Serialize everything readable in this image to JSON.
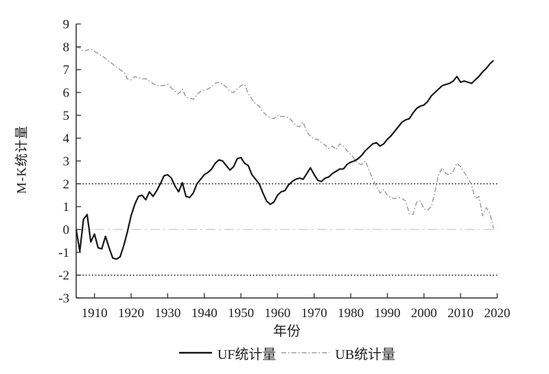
{
  "chart_data": {
    "type": "line",
    "title": "",
    "xlabel": "年份",
    "ylabel": "M-K统计量",
    "xlim": [
      1905,
      2020
    ],
    "ylim": [
      -3,
      9
    ],
    "grid": false,
    "legend_position": "bottom-center",
    "x_ticks": [
      1910,
      1920,
      1930,
      1940,
      1950,
      1960,
      1970,
      1980,
      1990,
      2000,
      2010,
      2020
    ],
    "y_ticks": [
      -3,
      -2,
      -1,
      0,
      1,
      2,
      3,
      4,
      5,
      6,
      7,
      8,
      9
    ],
    "reference_lines": [
      {
        "name": "upper-critical-line",
        "y": 2,
        "color": "#2b2b2b",
        "width": 1.6,
        "dash": "1.8 2.8"
      },
      {
        "name": "zero-line",
        "y": 0,
        "color": "#c6c6c6",
        "width": 1.2,
        "dash": "14 5 3 5"
      },
      {
        "name": "lower-critical-line",
        "y": -2,
        "color": "#2b2b2b",
        "width": 1.6,
        "dash": "1.8 2.8"
      }
    ],
    "years": [
      1905,
      1906,
      1907,
      1908,
      1909,
      1910,
      1911,
      1912,
      1913,
      1914,
      1915,
      1916,
      1917,
      1918,
      1919,
      1920,
      1921,
      1922,
      1923,
      1924,
      1925,
      1926,
      1927,
      1928,
      1929,
      1930,
      1931,
      1932,
      1933,
      1934,
      1935,
      1936,
      1937,
      1938,
      1939,
      1940,
      1941,
      1942,
      1943,
      1944,
      1945,
      1946,
      1947,
      1948,
      1949,
      1950,
      1951,
      1952,
      1953,
      1954,
      1955,
      1956,
      1957,
      1958,
      1959,
      1960,
      1961,
      1962,
      1963,
      1964,
      1965,
      1966,
      1967,
      1968,
      1969,
      1970,
      1971,
      1972,
      1973,
      1974,
      1975,
      1976,
      1977,
      1978,
      1979,
      1980,
      1981,
      1982,
      1983,
      1984,
      1985,
      1986,
      1987,
      1988,
      1989,
      1990,
      1991,
      1992,
      1993,
      1994,
      1995,
      1996,
      1997,
      1998,
      1999,
      2000,
      2001,
      2002,
      2003,
      2004,
      2005,
      2006,
      2007,
      2008,
      2009,
      2010,
      2011,
      2012,
      2013,
      2014,
      2015,
      2016,
      2017,
      2018,
      2019
    ],
    "series": [
      {
        "key": "uf",
        "name": "UF统计量",
        "color": "#141414",
        "width": 2.2,
        "dash": "",
        "values": [
          0,
          -0.95,
          0.45,
          0.65,
          -0.55,
          -0.2,
          -0.8,
          -0.85,
          -0.3,
          -0.8,
          -1.25,
          -1.3,
          -1.2,
          -0.7,
          -0.1,
          0.6,
          1.1,
          1.45,
          1.5,
          1.3,
          1.65,
          1.45,
          1.7,
          2.0,
          2.35,
          2.4,
          2.25,
          1.9,
          1.65,
          2.05,
          1.45,
          1.4,
          1.6,
          2.0,
          2.2,
          2.4,
          2.5,
          2.65,
          2.9,
          3.05,
          3.0,
          2.8,
          2.6,
          2.75,
          3.1,
          3.15,
          2.9,
          2.8,
          2.4,
          2.2,
          2.0,
          1.6,
          1.25,
          1.1,
          1.2,
          1.5,
          1.65,
          1.7,
          1.95,
          2.1,
          2.2,
          2.25,
          2.2,
          2.45,
          2.7,
          2.4,
          2.15,
          2.1,
          2.25,
          2.3,
          2.45,
          2.55,
          2.65,
          2.65,
          2.85,
          2.95,
          3.0,
          3.1,
          3.25,
          3.45,
          3.6,
          3.75,
          3.8,
          3.65,
          3.75,
          3.95,
          4.1,
          4.3,
          4.5,
          4.7,
          4.8,
          4.85,
          5.1,
          5.3,
          5.4,
          5.45,
          5.6,
          5.85,
          6.0,
          6.15,
          6.3,
          6.35,
          6.4,
          6.5,
          6.7,
          6.45,
          6.5,
          6.45,
          6.4,
          6.55,
          6.7,
          6.9,
          7.05,
          7.25,
          7.4
        ]
      },
      {
        "key": "ub",
        "name": "UB统计量",
        "color": "#9a9a9a",
        "width": 1.5,
        "dash": "7 3 1.8 3",
        "values": [
          8.0,
          7.95,
          7.8,
          7.85,
          7.9,
          7.8,
          7.7,
          7.6,
          7.5,
          7.35,
          7.25,
          7.1,
          7.0,
          6.9,
          6.6,
          6.55,
          6.7,
          6.65,
          6.6,
          6.6,
          6.5,
          6.4,
          6.3,
          6.3,
          6.3,
          6.35,
          6.2,
          6.05,
          5.95,
          6.15,
          5.8,
          5.75,
          5.7,
          5.9,
          6.05,
          6.1,
          6.15,
          6.25,
          6.4,
          6.45,
          6.35,
          6.25,
          6.05,
          6.0,
          6.15,
          6.3,
          6.35,
          5.95,
          5.7,
          5.5,
          5.4,
          5.15,
          5.0,
          4.9,
          4.85,
          5.0,
          4.95,
          4.95,
          4.9,
          4.75,
          4.55,
          4.5,
          4.7,
          4.25,
          4.1,
          3.95,
          3.95,
          3.8,
          3.7,
          3.55,
          3.65,
          3.5,
          3.75,
          3.65,
          3.45,
          3.3,
          3.1,
          2.9,
          2.85,
          3.0,
          2.6,
          2.2,
          1.9,
          1.6,
          1.75,
          1.5,
          1.4,
          1.35,
          1.4,
          1.35,
          1.25,
          0.7,
          0.65,
          1.2,
          1.25,
          0.9,
          0.85,
          1.0,
          1.65,
          2.4,
          2.7,
          2.45,
          2.4,
          2.55,
          2.9,
          2.75,
          2.5,
          2.25,
          1.95,
          1.35,
          1.45,
          0.6,
          0.95,
          0.7,
          0.05
        ]
      }
    ],
    "axis_color": "#2b2b2b",
    "tick_label_color": "#1f1f1f"
  }
}
